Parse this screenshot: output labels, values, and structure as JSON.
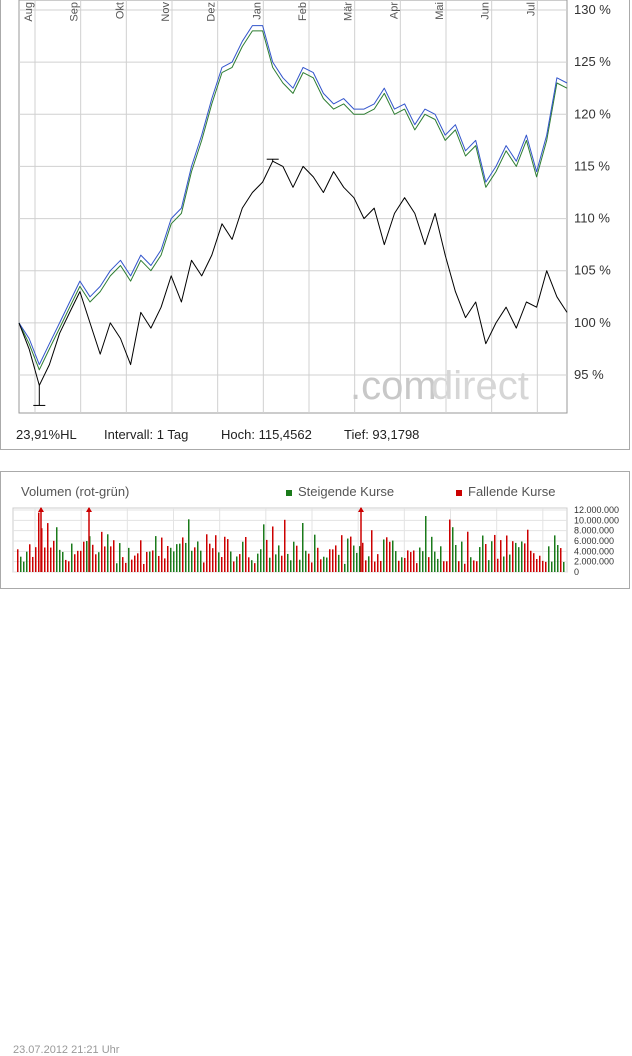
{
  "chart_data": {
    "type": "line",
    "months": [
      "Aug",
      "Sep",
      "Okt",
      "Nov",
      "Dez",
      "Jan",
      "Feb",
      "Mär",
      "Apr",
      "Mai",
      "Jun",
      "Jul"
    ],
    "y_ticks": [
      "130 %",
      "125 %",
      "120 %",
      "115 %",
      "110 %",
      "105 %",
      "100 %",
      "95 %"
    ],
    "ylim": [
      92,
      131
    ],
    "watermark": {
      "part1": ".com",
      "part2": "direct"
    },
    "series": [
      {
        "color": "#000000",
        "values": [
          100,
          97.5,
          94,
          96,
          99,
          101,
          103,
          100,
          97,
          100,
          98.5,
          96,
          101,
          99.5,
          101.5,
          104.5,
          102,
          106,
          104.5,
          106.5,
          109.5,
          108,
          111,
          112.5,
          113.5,
          115.5,
          115,
          113,
          115,
          114,
          112.5,
          114.5,
          113,
          112,
          110,
          111,
          107.5,
          110.5,
          112,
          110.5,
          107.5,
          110.5,
          106.5,
          103,
          100.5,
          102,
          98,
          100,
          101.5,
          99.5,
          102,
          101.5,
          105,
          102.5,
          101
        ]
      },
      {
        "color": "#3355cc",
        "values": [
          100,
          98.5,
          96,
          98,
          100,
          102,
          104,
          102.5,
          103.5,
          105,
          106,
          104.5,
          106.5,
          105.5,
          107,
          110,
          111,
          115,
          118,
          121.5,
          124.5,
          125,
          127,
          128.5,
          128.5,
          125,
          123.5,
          122.5,
          124.5,
          124,
          122,
          121,
          121.5,
          120.5,
          120.5,
          121,
          122.5,
          120.5,
          121,
          119,
          120.5,
          120,
          118,
          119,
          116.5,
          117.5,
          113.5,
          115,
          117,
          115.5,
          118,
          114.5,
          118,
          123.5,
          123
        ]
      },
      {
        "color": "#2e7d32",
        "values": [
          100,
          98,
          95.5,
          97.5,
          99.5,
          101.5,
          103.5,
          102,
          103,
          104.5,
          105.5,
          104,
          106,
          105,
          106.5,
          109.5,
          110.5,
          114.5,
          117.5,
          121,
          124,
          124.5,
          126.5,
          128,
          128,
          124.5,
          123,
          122,
          124,
          123.5,
          121.5,
          120.5,
          121,
          120,
          120,
          120.5,
          122,
          120,
          120.5,
          118.5,
          120,
          119.5,
          117.5,
          118.5,
          116,
          117,
          113,
          114.5,
          116.5,
          115,
          117.5,
          114,
          117.5,
          123,
          122.5
        ]
      }
    ],
    "volume": {
      "title": "Volumen (rot-grün)",
      "legend": [
        "Steigende Kurse",
        "Fallende Kurse"
      ],
      "colors": [
        "#1a7a1a",
        "#cc0000"
      ],
      "y_ticks": [
        "12.000.000",
        "10.000.000",
        "8.000.000",
        "6.000.000",
        "4.000.000",
        "2.000.000",
        "0"
      ],
      "ylim": [
        0,
        12000000
      ]
    }
  },
  "stats": {
    "range": "23,91%HL",
    "interval": "Intervall: 1 Tag",
    "high": "Hoch: 115,4562",
    "low": "Tief: 93,1798"
  },
  "timestamp": "23.07.2012 21:21 Uhr"
}
